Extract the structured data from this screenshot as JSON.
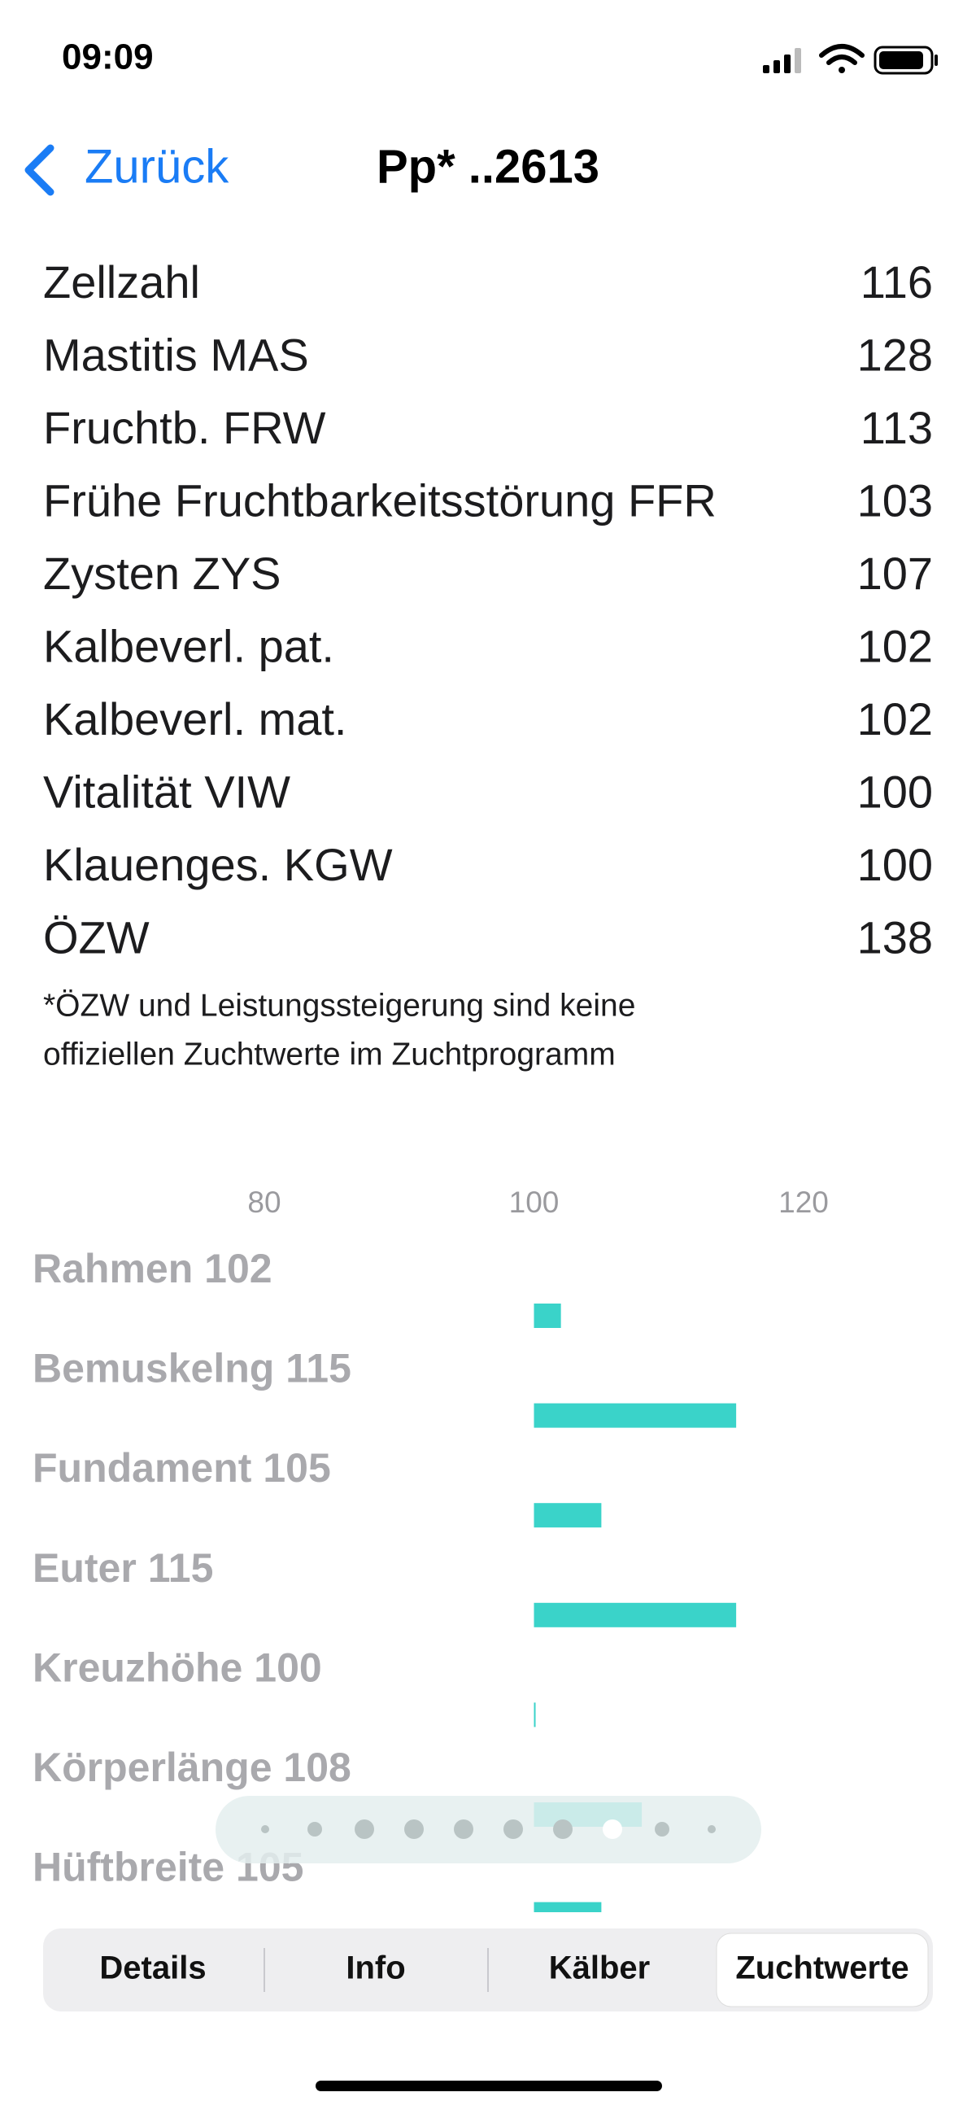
{
  "status_bar": {
    "time": "09:09"
  },
  "nav": {
    "back": "Zurück",
    "title": "Pp* ..2613"
  },
  "list": [
    {
      "label": "Zellzahl",
      "value": 116
    },
    {
      "label": "Mastitis MAS",
      "value": 128
    },
    {
      "label": "Fruchtb. FRW",
      "value": 113
    },
    {
      "label": "Frühe Fruchtbarkeitsstörung FFR",
      "value": 103
    },
    {
      "label": "Zysten ZYS",
      "value": 107
    },
    {
      "label": "Kalbeverl. pat.",
      "value": 102
    },
    {
      "label": "Kalbeverl. mat.",
      "value": 102
    },
    {
      "label": "Vitalität VIW",
      "value": 100
    },
    {
      "label": "Klauenges. KGW",
      "value": 100
    },
    {
      "label": "ÖZW",
      "value": 138
    }
  ],
  "footnote": [
    "*ÖZW und Leistungssteigerung sind keine",
    "offiziellen Zuchtwerte im Zuchtprogramm"
  ],
  "chart_data": {
    "type": "bar",
    "orientation": "horizontal",
    "categories": [
      "Rahmen",
      "Bemuskelng",
      "Fundament",
      "Euter",
      "Kreuzhöhe",
      "Körperlänge",
      "Hüftbreite"
    ],
    "values": [
      102,
      115,
      105,
      115,
      100,
      108,
      105
    ],
    "base": 100,
    "color": "#3ad3c9",
    "xlim": [
      80,
      120
    ],
    "xticks": [
      80,
      100,
      120
    ]
  },
  "tabs": [
    "Details",
    "Info",
    "Kälber",
    "Zuchtwerte"
  ]
}
